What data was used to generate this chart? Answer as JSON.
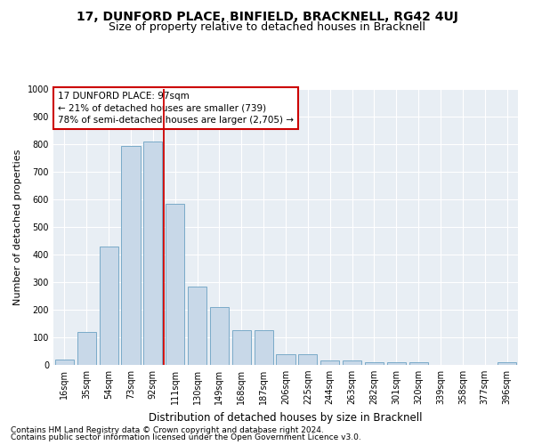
{
  "title": "17, DUNFORD PLACE, BINFIELD, BRACKNELL, RG42 4UJ",
  "subtitle": "Size of property relative to detached houses in Bracknell",
  "xlabel": "Distribution of detached houses by size in Bracknell",
  "ylabel": "Number of detached properties",
  "categories": [
    "16sqm",
    "35sqm",
    "54sqm",
    "73sqm",
    "92sqm",
    "111sqm",
    "130sqm",
    "149sqm",
    "168sqm",
    "187sqm",
    "206sqm",
    "225sqm",
    "244sqm",
    "263sqm",
    "282sqm",
    "301sqm",
    "320sqm",
    "339sqm",
    "358sqm",
    "377sqm",
    "396sqm"
  ],
  "values": [
    18,
    120,
    430,
    795,
    810,
    585,
    285,
    210,
    125,
    125,
    40,
    40,
    15,
    15,
    10,
    10,
    10,
    0,
    0,
    0,
    10
  ],
  "bar_color": "#c8d8e8",
  "bar_edge_color": "#7aaac8",
  "vline_x_idx": 4.5,
  "vline_color": "#cc0000",
  "annotation_text": "17 DUNFORD PLACE: 97sqm\n← 21% of detached houses are smaller (739)\n78% of semi-detached houses are larger (2,705) →",
  "annotation_box_facecolor": "#ffffff",
  "annotation_box_edgecolor": "#cc0000",
  "ylim": [
    0,
    1000
  ],
  "yticks": [
    0,
    100,
    200,
    300,
    400,
    500,
    600,
    700,
    800,
    900,
    1000
  ],
  "background_color": "#e8eef4",
  "grid_color": "#ffffff",
  "footer_line1": "Contains HM Land Registry data © Crown copyright and database right 2024.",
  "footer_line2": "Contains public sector information licensed under the Open Government Licence v3.0.",
  "title_fontsize": 10,
  "subtitle_fontsize": 9,
  "xlabel_fontsize": 8.5,
  "ylabel_fontsize": 8,
  "tick_fontsize": 7,
  "annotation_fontsize": 7.5,
  "footer_fontsize": 6.5
}
